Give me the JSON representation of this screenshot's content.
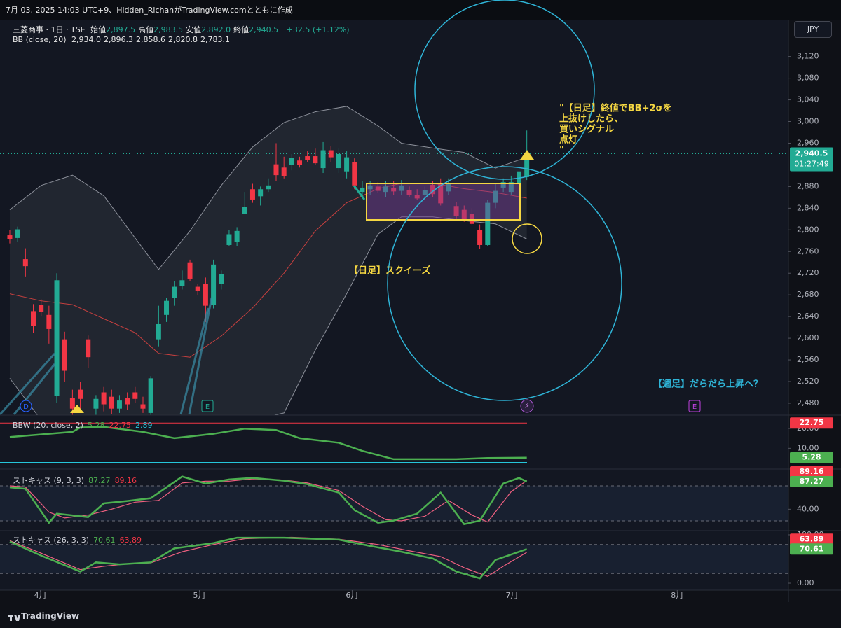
{
  "header": {
    "caption": "7月 03, 2025 14:03 UTC+9、Hidden_RichanがTradingView.comとともに作成",
    "symbol": "三菱商事 · 1日 · TSE",
    "ohlc": [
      [
        "始値",
        "2,897.5"
      ],
      [
        "高値",
        "2,983.5"
      ],
      [
        "安値",
        "2,892.0"
      ],
      [
        "終値",
        "2,940.5"
      ]
    ],
    "change": "+32.5 (+1.12%)",
    "bb": "BB (close, 20)",
    "bb_values": [
      "2,934.0",
      "2,896.3",
      "2,858.6",
      "2,820.8",
      "2,783.1"
    ],
    "currency": "JPY"
  },
  "footer": {
    "brand": "TradingView"
  },
  "chart_data": [
    {
      "type": "candlestick",
      "up_color": "#22ab94",
      "down_color": "#f23645",
      "open": [
        2790,
        2785,
        2746,
        2650,
        2662,
        2643,
        2494,
        2598,
        2490,
        2505,
        2598,
        2470,
        2500,
        2492,
        2470,
        2490,
        2500,
        2478,
        2462,
        2598,
        2643,
        2675,
        2697,
        2740,
        2695,
        2700,
        2662,
        2700,
        2772,
        2778,
        2830,
        2875,
        2862,
        2875,
        2921,
        2915,
        2920,
        2928,
        2936,
        2936,
        2914,
        2947,
        2914,
        2908,
        2925,
        2870,
        2875,
        2880,
        2870,
        2878,
        2872,
        2873,
        2865,
        2864,
        2883,
        2886,
        2871,
        2844,
        2837,
        2830,
        2800,
        2772,
        2850,
        2878,
        2870,
        2886,
        2897.5
      ],
      "high": [
        2800,
        2806,
        2766,
        2663,
        2672,
        2660,
        2720,
        2612,
        2505,
        2520,
        2605,
        2495,
        2510,
        2505,
        2495,
        2500,
        2510,
        2492,
        2530,
        2660,
        2675,
        2705,
        2725,
        2745,
        2700,
        2712,
        2745,
        2725,
        2800,
        2805,
        2870,
        2885,
        2880,
        2895,
        2960,
        2935,
        2940,
        2935,
        2945,
        2950,
        2962,
        2955,
        2950,
        2945,
        2932,
        2890,
        2890,
        2888,
        2890,
        2890,
        2892,
        2880,
        2875,
        2880,
        2890,
        2895,
        2895,
        2852,
        2845,
        2840,
        2810,
        2855,
        2885,
        2895,
        2900,
        2915,
        2983.5
      ],
      "low": [
        2775,
        2778,
        2714,
        2610,
        2640,
        2590,
        2480,
        2520,
        2455,
        2470,
        2545,
        2455,
        2465,
        2460,
        2462,
        2468,
        2480,
        2462,
        2455,
        2585,
        2630,
        2660,
        2690,
        2705,
        2680,
        2630,
        2655,
        2690,
        2770,
        2770,
        2830,
        2850,
        2845,
        2870,
        2890,
        2895,
        2910,
        2915,
        2925,
        2920,
        2905,
        2925,
        2905,
        2895,
        2875,
        2860,
        2865,
        2868,
        2860,
        2865,
        2865,
        2860,
        2855,
        2855,
        2860,
        2845,
        2865,
        2820,
        2815,
        2808,
        2765,
        2770,
        2840,
        2870,
        2865,
        2875,
        2892.0
      ],
      "close": [
        2783,
        2801,
        2733,
        2623,
        2649,
        2617,
        2707,
        2540,
        2470,
        2488,
        2565,
        2488,
        2478,
        2470,
        2485,
        2478,
        2488,
        2470,
        2526,
        2626,
        2669,
        2695,
        2707,
        2710,
        2688,
        2660,
        2736,
        2718,
        2792,
        2798,
        2843,
        2856,
        2875,
        2882,
        2901,
        2899,
        2933,
        2920,
        2929,
        2923,
        2947,
        2934,
        2940,
        2934,
        2882,
        2878,
        2882,
        2872,
        2880,
        2871,
        2882,
        2865,
        2858,
        2873,
        2866,
        2849,
        2886,
        2825,
        2818,
        2811,
        2772,
        2850,
        2872,
        2888,
        2888,
        2908,
        2940.5
      ],
      "bands": [
        {
          "color": "#8c909a",
          "x": [
            0,
            4,
            8,
            12,
            16,
            19,
            23,
            27,
            31,
            35,
            39,
            43,
            47,
            50,
            54,
            58,
            62,
            66
          ],
          "values": [
            2837,
            2882,
            2901,
            2863,
            2785,
            2727,
            2798,
            2882,
            2953,
            2998,
            3018,
            3028,
            2992,
            2960,
            2951,
            2943,
            2914,
            2934.0
          ]
        },
        {
          "color": "#c8403f",
          "x": [
            0,
            4,
            8,
            12,
            16,
            19,
            23,
            27,
            31,
            35,
            39,
            43,
            47,
            50,
            54,
            58,
            62,
            66
          ],
          "values": [
            2682,
            2669,
            2662,
            2636,
            2610,
            2572,
            2565,
            2604,
            2656,
            2720,
            2798,
            2850,
            2876,
            2886,
            2886,
            2876,
            2869,
            2858.6
          ]
        },
        {
          "color": "#8c909a",
          "x": [
            0,
            4,
            8,
            12,
            16,
            19,
            23,
            27,
            31,
            35,
            39,
            43,
            47,
            50,
            54,
            58,
            62,
            66
          ],
          "values": [
            2526,
            2449,
            2423,
            2410,
            2436,
            2423,
            2397,
            2397,
            2449,
            2462,
            2578,
            2682,
            2792,
            2824,
            2824,
            2817,
            2811,
            2783.1
          ]
        }
      ],
      "ylim": [
        2458,
        3188
      ],
      "yticks": [
        {
          "value": 2480,
          "label": "2,480"
        },
        {
          "value": 2520,
          "label": "2,520"
        },
        {
          "value": 2560,
          "label": "2,560"
        },
        {
          "value": 2600,
          "label": "2,600"
        },
        {
          "value": 2640,
          "label": "2,640"
        },
        {
          "value": 2680,
          "label": "2,680"
        },
        {
          "value": 2720,
          "label": "2,720"
        },
        {
          "value": 2760,
          "label": "2,760"
        },
        {
          "value": 2800,
          "label": "2,800"
        },
        {
          "value": 2840,
          "label": "2,840"
        },
        {
          "value": 2880,
          "label": "2,880"
        },
        {
          "value": 2960,
          "label": "2,960"
        },
        {
          "value": 3000,
          "label": "3,000"
        },
        {
          "value": 3040,
          "label": "3,040"
        },
        {
          "value": 3080,
          "label": "3,080"
        },
        {
          "value": 3120,
          "label": "3,120"
        }
      ],
      "xlim": [
        -1.25,
        99.4
      ],
      "xticks": [
        {
          "value": 3.9,
          "label": "4月"
        },
        {
          "value": 24.2,
          "label": "5月"
        },
        {
          "value": 43.7,
          "label": "6月"
        },
        {
          "value": 64.1,
          "label": "7月"
        },
        {
          "value": 85.2,
          "label": "8月"
        }
      ],
      "price_tag": {
        "label": "2,940.5",
        "countdown": "01:27:49"
      },
      "annotations": [
        {
          "lines": [
            "【日足】スクイーズ"
          ]
        },
        {
          "lines": [
            "\"【日足】終値でBB+2σを",
            "上抜けしたら、",
            "買いシグナル",
            "点灯",
            "\""
          ]
        },
        {
          "lines": [
            "【週足】だらだら上昇へ？"
          ]
        }
      ],
      "markers": [
        "D",
        "E",
        "E"
      ]
    },
    {
      "type": "line",
      "title": "BBW (20, close, 2)",
      "legend_values": [
        {
          "label": "5.28",
          "color": "#4caf50"
        },
        {
          "label": "22.75",
          "color": "#f23645"
        },
        {
          "label": "2.89",
          "color": "#26c6da"
        }
      ],
      "ylim": [
        1.29,
        25.31
      ],
      "yticks": [
        {
          "value": 20,
          "label": "20.00"
        },
        {
          "value": 10,
          "label": "10.00"
        }
      ],
      "series": [
        {
          "color": "#4caf50",
          "x": [
            0,
            8,
            9,
            12,
            17,
            21,
            26,
            30,
            34,
            37,
            42,
            45,
            49,
            57,
            61,
            66
          ],
          "values": [
            15.7,
            18.3,
            20.5,
            20.8,
            18.3,
            15.1,
            17.3,
            19.9,
            19.2,
            15.1,
            12.8,
            8.7,
            4.5,
            4.5,
            5.1,
            5.28
          ],
          "tag": "5.28"
        }
      ],
      "hlines": [
        {
          "value": 22.75,
          "color": "#f23645",
          "tag": "22.75"
        },
        {
          "value": 2.89,
          "color": "#26c6da"
        }
      ]
    },
    {
      "type": "line",
      "title": "ストキャス (9, 3, 3)",
      "legend_values": [
        {
          "label": "87.27",
          "color": "#4caf50"
        },
        {
          "label": "89.16",
          "color": "#f23645"
        }
      ],
      "ylim": [
        6.8,
        101.6
      ],
      "yticks": [
        {
          "value": 40,
          "label": "40.00"
        }
      ],
      "series": [
        {
          "color": "#f06080",
          "x": [
            0,
            2,
            5,
            7,
            10,
            13,
            16,
            19,
            22,
            25,
            28,
            31,
            35,
            38,
            42,
            45,
            48,
            50,
            53,
            56,
            59,
            61,
            64,
            66
          ],
          "values": [
            80,
            78,
            35,
            25,
            30,
            40,
            52,
            55,
            85,
            88,
            88,
            92,
            90,
            85,
            72,
            45,
            22,
            20,
            28,
            55,
            30,
            18,
            70,
            89.16
          ],
          "tag": "89.16"
        },
        {
          "color": "#4caf50",
          "x": [
            0,
            2,
            5,
            6,
            10,
            12,
            15,
            18,
            22,
            25,
            28,
            31,
            35,
            38,
            42,
            44,
            47,
            49,
            52,
            55,
            58,
            60,
            63,
            65,
            66
          ],
          "values": [
            77.4,
            75,
            16.8,
            32.4,
            26.4,
            50,
            54,
            58.8,
            96,
            84,
            91,
            93.6,
            88.8,
            82.8,
            68.4,
            38.4,
            16.8,
            20.4,
            32.4,
            68.4,
            14.4,
            20.4,
            84,
            93.6,
            87.27
          ],
          "tag": "87.27"
        }
      ],
      "hlines": [
        {
          "value": 80,
          "color": "#6a6d78",
          "dashed": true
        },
        {
          "value": 20,
          "color": "#6a6d78",
          "dashed": true
        }
      ],
      "hline_fill": "#182030"
    },
    {
      "type": "line",
      "title": "ストキャス (26, 3, 3)",
      "legend_values": [
        {
          "label": "70.61",
          "color": "#4caf50"
        },
        {
          "label": "63.89",
          "color": "#f23645"
        }
      ],
      "ylim": [
        -13,
        104.3
      ],
      "yticks": [
        {
          "value": 100,
          "label": "100.00"
        },
        {
          "value": 0,
          "label": "0.00"
        }
      ],
      "series": [
        {
          "color": "#f06080",
          "x": [
            0,
            4,
            9,
            12,
            15,
            18,
            22,
            26,
            30,
            36,
            42,
            47,
            51,
            55,
            58,
            61,
            63,
            66
          ],
          "values": [
            88,
            62,
            28,
            35,
            40,
            42,
            65,
            80,
            92,
            95,
            91,
            80,
            67,
            55,
            32,
            14,
            35,
            63.89
          ],
          "tag": "63.89"
        },
        {
          "color": "#4caf50",
          "x": [
            0,
            4,
            9,
            11,
            14,
            18,
            21,
            26,
            29,
            35,
            42,
            46,
            50,
            54,
            57,
            60,
            62,
            66
          ],
          "values": [
            86,
            57,
            24,
            43,
            39,
            43,
            72,
            83,
            94,
            94,
            90,
            77,
            65,
            51,
            24,
            10,
            48,
            70.61
          ],
          "tag": "70.61"
        }
      ],
      "hlines": [
        {
          "value": 80,
          "color": "#6a6d78",
          "dashed": true
        },
        {
          "value": 20,
          "color": "#6a6d78",
          "dashed": true
        }
      ],
      "hline_fill": "#182030"
    }
  ]
}
